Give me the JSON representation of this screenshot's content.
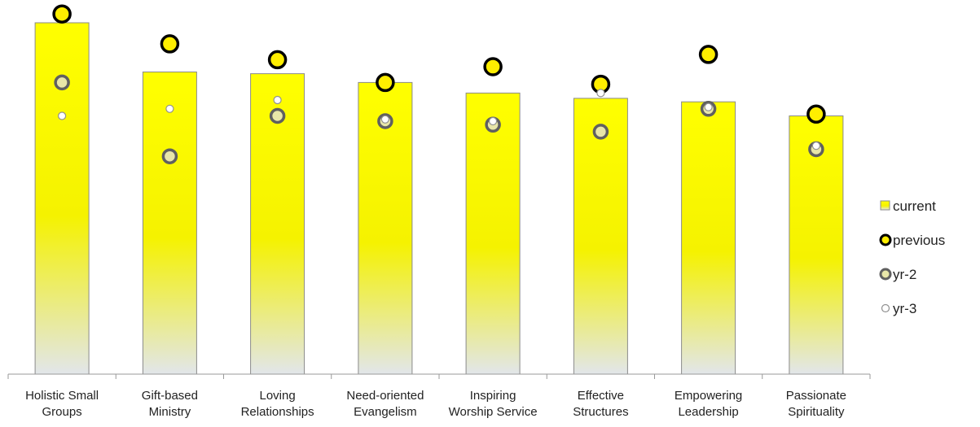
{
  "chart_data": {
    "type": "bar",
    "categories": [
      [
        "Holistic Small",
        "Groups"
      ],
      [
        "Gift-based",
        "Ministry"
      ],
      [
        "Loving",
        "Relationships"
      ],
      [
        "Need-oriented",
        "Evangelism"
      ],
      [
        "Inspiring",
        "Worship Service"
      ],
      [
        "Effective",
        "Structures"
      ],
      [
        "Empowering",
        "Leadership"
      ],
      [
        "Passionate",
        "Spirituality"
      ]
    ],
    "ylim": [
      0,
      100
    ],
    "grid": false,
    "legend_position": "right",
    "series": [
      {
        "name": "current",
        "mark": "bar",
        "values": [
          100,
          86,
          85.5,
          83,
          80,
          78.5,
          77.5,
          73.5
        ]
      },
      {
        "name": "previous",
        "mark": "circle-large",
        "values": [
          102.5,
          94,
          89.5,
          83,
          87.5,
          82.5,
          91,
          74
        ]
      },
      {
        "name": "yr-2",
        "mark": "circle-medium",
        "values": [
          83,
          62,
          73.5,
          72,
          71,
          69,
          75.5,
          64
        ]
      },
      {
        "name": "yr-3",
        "mark": "circle-small",
        "values": [
          73.5,
          75.5,
          78,
          72.5,
          72,
          80,
          76,
          65
        ]
      }
    ]
  },
  "colors": {
    "bar_top": "#ffff00",
    "bar_mid": "#f3f000",
    "bar_bottom": "#e4e8ea",
    "bar_stroke": "#8a8a8a",
    "previous_fill": "#ffee00",
    "previous_stroke": "#000000",
    "yr2_fill": "#e8e6a8",
    "yr2_stroke": "#606060",
    "yr3_fill": "#ffffff",
    "yr3_stroke": "#909090",
    "axis": "#999999"
  }
}
